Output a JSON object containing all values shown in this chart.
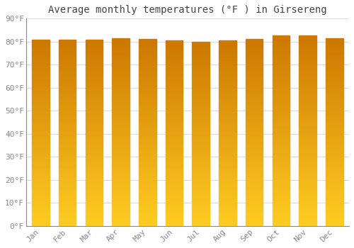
{
  "title": "Average monthly temperatures (°F ) in Girsereng",
  "months": [
    "Jan",
    "Feb",
    "Mar",
    "Apr",
    "May",
    "Jun",
    "Jul",
    "Aug",
    "Sep",
    "Oct",
    "Nov",
    "Dec"
  ],
  "values": [
    80.8,
    80.8,
    81.0,
    81.5,
    81.3,
    80.6,
    79.9,
    80.4,
    81.2,
    82.8,
    82.8,
    81.5
  ],
  "ylim": [
    0,
    90
  ],
  "yticks": [
    0,
    10,
    20,
    30,
    40,
    50,
    60,
    70,
    80,
    90
  ],
  "bar_color_bottom": "#F5B800",
  "bar_color_top": "#E08800",
  "background_color": "#ffffff",
  "plot_bg_color": "#ffffff",
  "grid_color": "#dddddd",
  "title_fontsize": 10,
  "tick_fontsize": 8,
  "font_family": "monospace",
  "bar_width": 0.65
}
